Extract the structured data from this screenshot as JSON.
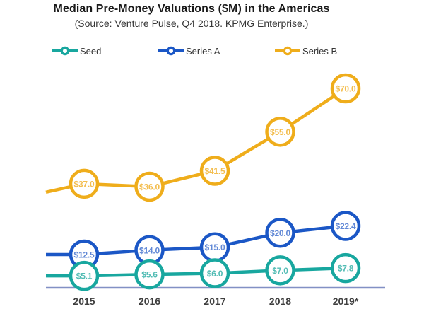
{
  "title": "Median Pre-Money Valuations ($M) in the Americas",
  "subtitle": "(Source: Venture Pulse, Q4 2018. KPMG Enterprise.)",
  "chart_data": {
    "type": "line",
    "categories": [
      "2015",
      "2016",
      "2017",
      "2018",
      "2019*"
    ],
    "series": [
      {
        "name": "Seed",
        "values": [
          5.1,
          5.6,
          6.0,
          7.0,
          7.8
        ],
        "point_labels": [
          "$5.1",
          "$5.6",
          "$6.0",
          "$7.0",
          "$7.8"
        ],
        "color": "#18A79F",
        "label_color": "#52BCB4"
      },
      {
        "name": "Series A",
        "values": [
          12.5,
          14.0,
          15.0,
          20.0,
          22.4
        ],
        "point_labels": [
          "$12.5",
          "$14.0",
          "$15.0",
          "$20.0",
          "$22.4"
        ],
        "color": "#1B57C6",
        "label_color": "#6289D6"
      },
      {
        "name": "Series B",
        "values": [
          37.0,
          36.0,
          41.5,
          55.0,
          70.0
        ],
        "point_labels": [
          "$37.0",
          "$36.0",
          "$41.5",
          "$55.0",
          "$70.0"
        ],
        "color": "#EFAD1B",
        "label_color": "#F3BD4E"
      }
    ],
    "xlabel": "",
    "ylabel": "",
    "ylim": [
      0,
      75
    ],
    "grid": false,
    "legend_position": "top",
    "marker_style": "open-circle-with-value",
    "axis_color": "#8290C5",
    "text_colors": {
      "title": "#1A1A1A",
      "subtitle": "#363636",
      "tick": "#3F3F3F",
      "legend": "#333333"
    }
  }
}
